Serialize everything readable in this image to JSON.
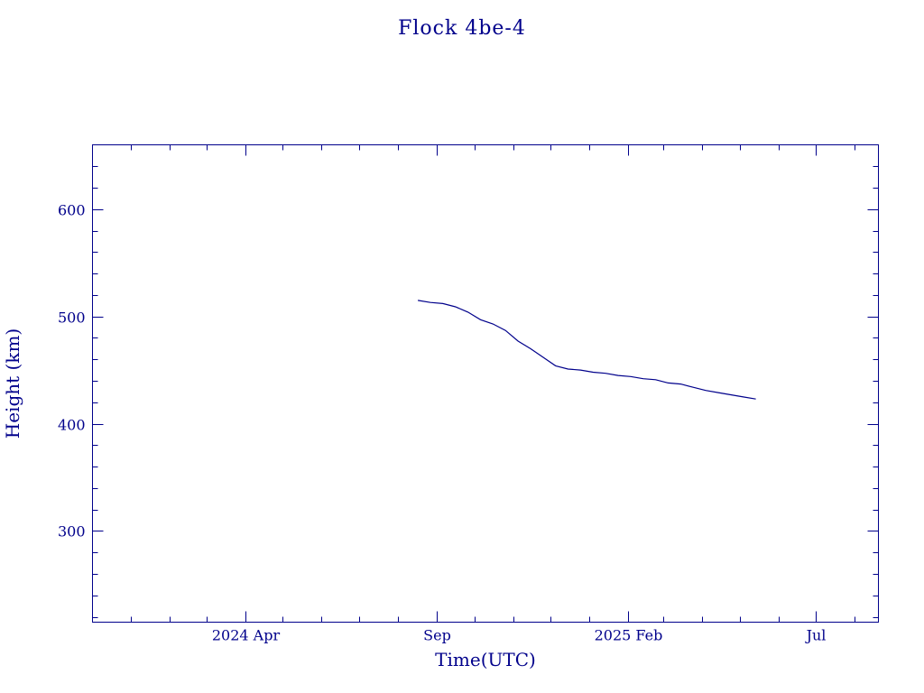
{
  "chart_data": {
    "type": "line",
    "title": "Flock 4be-4",
    "xlabel": "Time(UTC)",
    "ylabel": "Height (km)",
    "color": "#00008b",
    "xlim": [
      "2023-12-01",
      "2025-08-20"
    ],
    "ylim": [
      215,
      660
    ],
    "x_ticks": [
      {
        "date": "2024-04-01",
        "label": "2024 Apr"
      },
      {
        "date": "2024-09-01",
        "label": "Sep"
      },
      {
        "date": "2025-02-01",
        "label": "2025 Feb"
      },
      {
        "date": "2025-07-01",
        "label": "Jul"
      }
    ],
    "x_minor_ticks": [
      "2024-01-01",
      "2024-02-01",
      "2024-03-01",
      "2024-05-01",
      "2024-06-01",
      "2024-07-01",
      "2024-08-01",
      "2024-10-01",
      "2024-11-01",
      "2024-12-01",
      "2025-01-01",
      "2025-03-01",
      "2025-04-01",
      "2025-05-01",
      "2025-06-01",
      "2025-08-01"
    ],
    "y_ticks": [
      300,
      400,
      500,
      600
    ],
    "y_minor_ticks": [
      220,
      240,
      260,
      280,
      320,
      340,
      360,
      380,
      420,
      440,
      460,
      480,
      520,
      540,
      560,
      580,
      620,
      640
    ],
    "series": [
      {
        "x": [
          "2024-08-17",
          "2024-08-27",
          "2024-09-06",
          "2024-09-16",
          "2024-09-26",
          "2024-10-06",
          "2024-10-16",
          "2024-10-26",
          "2024-11-05",
          "2024-11-15",
          "2024-11-25",
          "2024-12-05",
          "2024-12-15",
          "2024-12-25",
          "2025-01-04",
          "2025-01-14",
          "2025-01-24",
          "2025-02-03",
          "2025-02-13",
          "2025-02-23",
          "2025-03-05",
          "2025-03-15",
          "2025-03-25",
          "2025-04-04",
          "2025-04-14",
          "2025-04-24",
          "2025-05-04",
          "2025-05-14"
        ],
        "y": [
          515,
          513,
          512,
          509,
          504,
          497,
          493,
          487,
          477,
          470,
          462,
          454,
          451,
          450,
          448,
          447,
          445,
          444,
          442,
          441,
          438,
          437,
          434,
          431,
          429,
          427,
          425,
          423
        ]
      }
    ]
  }
}
